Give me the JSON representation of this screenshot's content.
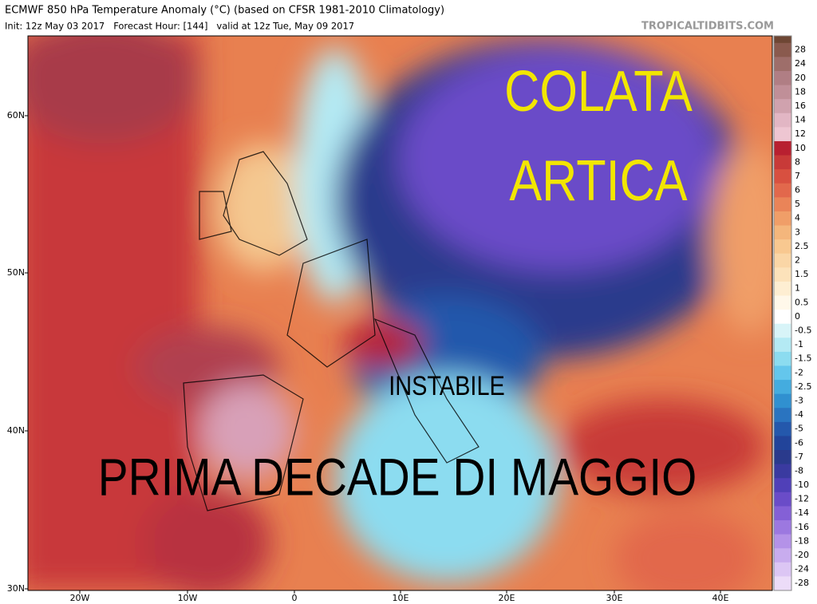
{
  "header": {
    "title": "ECMWF 850 hPa Temperature Anomaly (°C) (based on CFSR 1981-2010 Climatology)",
    "subtitle": "Init: 12z May 03 2017   Forecast Hour: [144]   valid at 12z Tue, May 09 2017",
    "watermark": "TROPICALTIDBITS.COM"
  },
  "map": {
    "lat_labels": [
      "60N",
      "50N",
      "40N",
      "30N"
    ],
    "lon_labels": [
      "20W",
      "10W",
      "0",
      "10E",
      "20E",
      "30E",
      "40E"
    ]
  },
  "overlays": {
    "top_line1": "COLATA",
    "top_line2": "ARTICA",
    "middle": "INSTABILE",
    "bottom": "PRIMA DECADE DI MAGGIO"
  },
  "colorbar": {
    "levels": [
      28,
      24,
      20,
      18,
      16,
      14,
      12,
      10,
      8,
      7,
      6,
      5,
      4,
      3,
      2.5,
      2,
      1.5,
      1,
      0.5,
      0,
      -0.5,
      -1,
      -1.5,
      -2,
      -2.5,
      -3,
      -4,
      -5,
      -6,
      -7,
      -8,
      -10,
      -12,
      -14,
      -16,
      -18,
      -20,
      -24,
      -28
    ],
    "colors": [
      "#8a5a4e",
      "#9e6e6a",
      "#b07e84",
      "#c08f98",
      "#d0a2ae",
      "#e2b6c4",
      "#eec6d2",
      "#b82030",
      "#c83a38",
      "#d85040",
      "#e2684c",
      "#ea8458",
      "#f09e68",
      "#f4b67c",
      "#f8c890",
      "#fad6a6",
      "#fce2ba",
      "#feeed2",
      "#fff8ea",
      "#ffffff",
      "#d8f4f8",
      "#b4eaf4",
      "#8cdcf0",
      "#64c6ec",
      "#44acdf",
      "#3090d0",
      "#2a74c0",
      "#2458ac",
      "#22449a",
      "#2a3a8c",
      "#3a3aa0",
      "#5040b8",
      "#6a4cc8",
      "#8460d6",
      "#9c78e0",
      "#b492e8",
      "#c8acee",
      "#dcc6f4",
      "#ecdcf8"
    ]
  }
}
